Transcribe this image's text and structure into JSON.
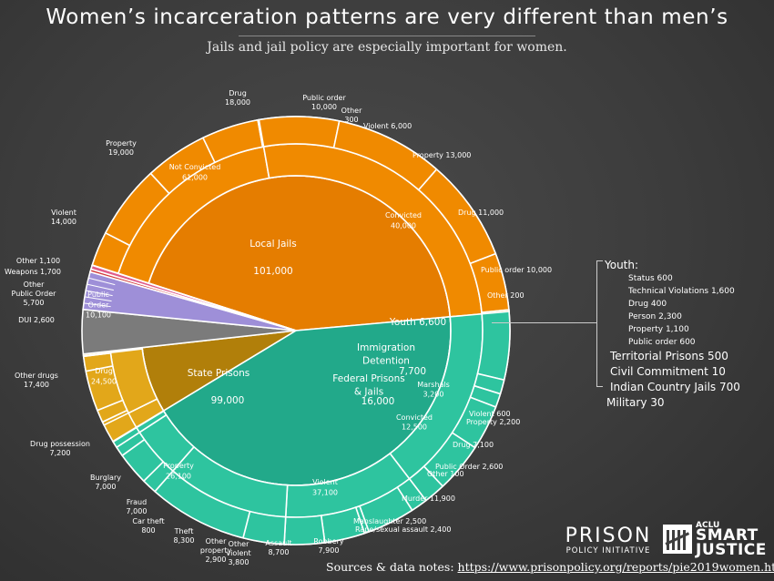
{
  "title": "Women’s incarceration patterns are very different than men’s",
  "subtitle": "Jails and jail policy are especially important for women.",
  "sources_label": "Sources & data notes:",
  "sources_url": "https://www.prisonpolicy.org/reports/pie2019women.html",
  "logo_ppi_1": "PRISON",
  "logo_ppi_2": "POLICY INITIATIVE",
  "logo_aclu_1": "ACLU",
  "logo_aclu_2": "SMART",
  "logo_aclu_3": "JUSTICE",
  "legend": {
    "youth_title": "Youth:",
    "youth_items": [
      "Status  600",
      "Technical Violations 1,600",
      "Drug 400",
      "Person 2,300",
      "Property 1,100",
      "Public order 600"
    ],
    "others": [
      "Territorial Prisons 500",
      "Civil Commitment 10",
      "Indian Country Jails 700",
      "Military 30"
    ]
  },
  "colors": {
    "jail": "#f08a00",
    "jail_inner": "#e57d00",
    "state": "#2ec49f",
    "state_inner": "#22a98a",
    "federal": "#c9910c",
    "federal_inner": "#b17f0a",
    "fed_outer": "#e2a71a",
    "immigration": "#7b7b7b",
    "youth": "#9e8fd8",
    "territorial": "#d23b3b",
    "civil": "#7ab648",
    "indian": "#e05c8a",
    "military": "#3a7bd5"
  },
  "chart_data": {
    "type": "pie",
    "title": "Women’s incarceration patterns are very different than men’s",
    "inner": [
      {
        "name": "Local Jails",
        "label": "Local Jails",
        "value_label": "101,000",
        "value": 101000,
        "color": "#e57d00"
      },
      {
        "name": "State Prisons",
        "label": "State Prisons",
        "value_label": "99,000",
        "value": 99000,
        "color": "#22a98a"
      },
      {
        "name": "Federal Prisons & Jails",
        "label": "Federal Prisons\n& Jails",
        "value_label": "16,000",
        "value": 16000,
        "color": "#b17f0a"
      },
      {
        "name": "Immigration Detention",
        "label": "Immigration\nDetention",
        "value_label": "7,700",
        "value": 7700,
        "color": "#7b7b7b"
      },
      {
        "name": "Youth",
        "label": "Youth",
        "value_label": "6,600",
        "value": 6600,
        "color": "#9e8fd8"
      },
      {
        "name": "Territorial Prisons",
        "value": 500,
        "color": "#d23b3b"
      },
      {
        "name": "Indian Country Jails",
        "value": 700,
        "color": "#e05c8a"
      },
      {
        "name": "Civil Commitment",
        "value": 10,
        "color": "#7ab648"
      },
      {
        "name": "Military",
        "value": 30,
        "color": "#3a7bd5"
      }
    ],
    "middle": [
      {
        "name": "Convicted",
        "parent": "Local Jails",
        "label": "Convicted\n40,000",
        "value": 40000
      },
      {
        "name": "Not Convicted",
        "parent": "Local Jails",
        "label": "Not Convicted\n61,000",
        "value": 61000
      },
      {
        "name": "Violent",
        "parent": "State Prisons",
        "label": "Violent\n37,100",
        "value": 37100
      },
      {
        "name": "Property",
        "parent": "State Prisons",
        "label": "Property\n26,100",
        "value": 26100
      },
      {
        "name": "Drug",
        "parent": "State Prisons",
        "label": "Drug\n24,500",
        "value": 24500
      },
      {
        "name": "Public Order",
        "parent": "State Prisons",
        "label": "Public\nOrder\n10,100",
        "value": 10100
      },
      {
        "name": "Other",
        "parent": "State Prisons",
        "value": 1100
      },
      {
        "name": "Marshals",
        "parent": "Federal Prisons & Jails",
        "label": "Marshals\n3,200",
        "value": 3200
      },
      {
        "name": "Convicted",
        "parent": "Federal Prisons & Jails",
        "label": "Convicted\n12,500",
        "value": 12500
      }
    ],
    "outer": [
      {
        "name": "Violent",
        "parent": "Jail Convicted",
        "label": "Violent 6,000",
        "value": 6000
      },
      {
        "name": "Property",
        "parent": "Jail Convicted",
        "label": "Property 13,000",
        "value": 13000
      },
      {
        "name": "Drug",
        "parent": "Jail Convicted",
        "label": "Drug 11,000",
        "value": 11000
      },
      {
        "name": "Public order",
        "parent": "Jail Convicted",
        "label": "Public order 10,000",
        "value": 10000
      },
      {
        "name": "Other",
        "parent": "Jail Convicted",
        "label": "Other 200",
        "value": 200
      },
      {
        "name": "Violent",
        "parent": "Jail Not Convicted",
        "label": "Violent\n14,000",
        "value": 14000
      },
      {
        "name": "Property",
        "parent": "Jail Not Convicted",
        "label": "Property\n19,000",
        "value": 19000
      },
      {
        "name": "Drug",
        "parent": "Jail Not Convicted",
        "label": "Drug\n18,000",
        "value": 18000
      },
      {
        "name": "Public order",
        "parent": "Jail Not Convicted",
        "label": "Public order\n10,000",
        "value": 10000
      },
      {
        "name": "Other",
        "parent": "Jail Not Convicted",
        "label": "Other\n300",
        "value": 300
      },
      {
        "name": "Murder",
        "parent": "State Violent",
        "label": "Murder 11,900",
        "value": 11900
      },
      {
        "name": "Manslaughter",
        "parent": "State Violent",
        "label": "Manslaughter 2,500",
        "value": 2500
      },
      {
        "name": "Rape/sexual assault",
        "parent": "State Violent",
        "label": "Rape/sexual assault 2,400",
        "value": 2400
      },
      {
        "name": "Robbery",
        "parent": "State Violent",
        "label": "Robbery\n7,900",
        "value": 7900
      },
      {
        "name": "Assault",
        "parent": "State Violent",
        "label": "Assault\n8,700",
        "value": 8700
      },
      {
        "name": "Other violent",
        "parent": "State Violent",
        "label": "Other\nviolent\n3,800",
        "value": 3800
      },
      {
        "name": "Other property",
        "parent": "State Property",
        "label": "Other\nproperty\n2,900",
        "value": 2900
      },
      {
        "name": "Theft",
        "parent": "State Property",
        "label": "Theft\n8,300",
        "value": 8300
      },
      {
        "name": "Car theft",
        "parent": "State Property",
        "label": "Car theft\n800",
        "value": 800
      },
      {
        "name": "Fraud",
        "parent": "State Property",
        "label": "Fraud\n7,000",
        "value": 7000
      },
      {
        "name": "Burglary",
        "parent": "State Property",
        "label": "Burglary\n7,000",
        "value": 7000
      },
      {
        "name": "Drug possession",
        "parent": "State Drug",
        "label": "Drug possession\n7,200",
        "value": 7200
      },
      {
        "name": "Other drugs",
        "parent": "State Drug",
        "label": "Other drugs\n17,400",
        "value": 17400
      },
      {
        "name": "DUI",
        "parent": "State Public Order",
        "label": "DUI 2,600",
        "value": 2600
      },
      {
        "name": "Other Public Order",
        "parent": "State Public Order",
        "label": "Other\nPublic Order\n5,700",
        "value": 5700
      },
      {
        "name": "Weapons",
        "parent": "State Public Order",
        "label": "Weapons  1,700",
        "value": 1700
      },
      {
        "name": "Other",
        "parent": "State Other",
        "label": "Other 1,100",
        "value": 1100
      },
      {
        "name": "Violent",
        "parent": "Federal Convicted",
        "label": "Violent 600",
        "value": 600
      },
      {
        "name": "Property",
        "parent": "Federal Convicted",
        "label": "Property 2,200",
        "value": 2200
      },
      {
        "name": "Drug",
        "parent": "Federal Convicted",
        "label": "Drug 7,100",
        "value": 7100
      },
      {
        "name": "Public Order",
        "parent": "Federal Convicted",
        "label": "Public Order  2,600",
        "value": 2600
      },
      {
        "name": "Other",
        "parent": "Federal Convicted",
        "label": "Other 100",
        "value": 100
      }
    ]
  }
}
